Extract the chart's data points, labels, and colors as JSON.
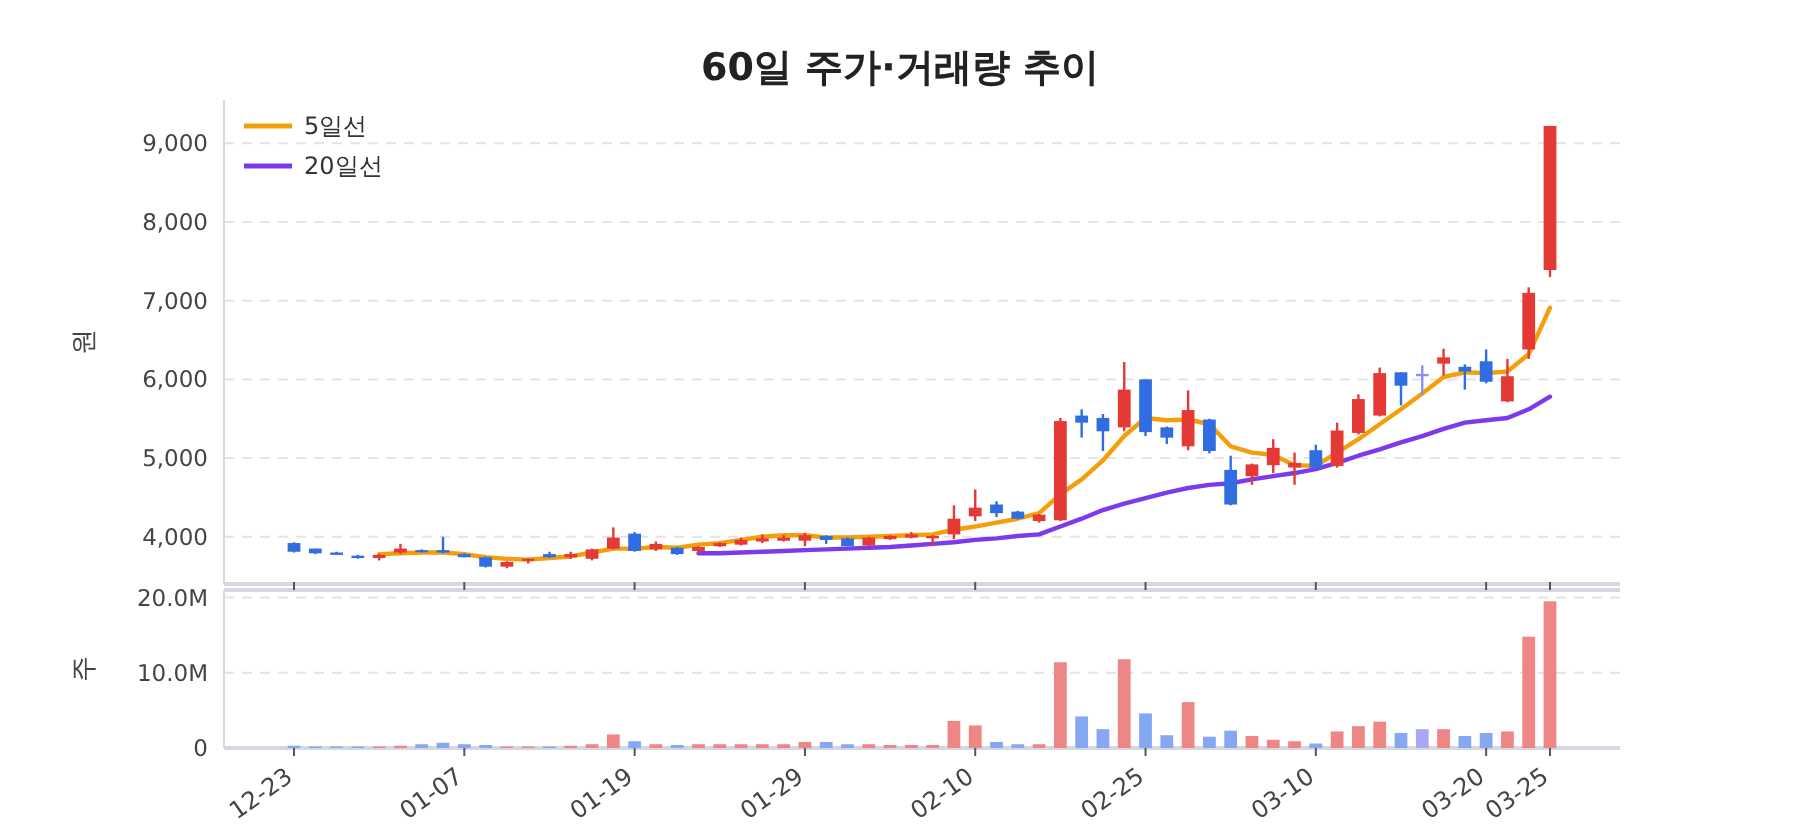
{
  "chart_data": [
    {
      "type": "candlestick",
      "title": "60일 주가·거래량 추이",
      "ylabel": "원",
      "categories": [
        null,
        null,
        null,
        null,
        null,
        null,
        null,
        null,
        null,
        null,
        null,
        null,
        null,
        null,
        null,
        null,
        null,
        null,
        null,
        null,
        null,
        null,
        null,
        null,
        null,
        null,
        null,
        null,
        null,
        null,
        null,
        null,
        null,
        null,
        null,
        null,
        null,
        null,
        null,
        null,
        null,
        null,
        null,
        null,
        null,
        null,
        null,
        null,
        null,
        null,
        null,
        null,
        null,
        null,
        null,
        null,
        null,
        null,
        null,
        null
      ],
      "ohlc": [
        [
          3920,
          3930,
          3800,
          3810
        ],
        [
          3850,
          3850,
          3780,
          3790
        ],
        [
          3800,
          3810,
          3770,
          3770
        ],
        [
          3760,
          3770,
          3720,
          3730
        ],
        [
          3730,
          3780,
          3700,
          3770
        ],
        [
          3800,
          3910,
          3780,
          3850
        ],
        [
          3830,
          3840,
          3800,
          3810
        ],
        [
          3830,
          4000,
          3790,
          3800
        ],
        [
          3780,
          3790,
          3740,
          3740
        ],
        [
          3740,
          3750,
          3610,
          3620
        ],
        [
          3620,
          3690,
          3600,
          3680
        ],
        [
          3700,
          3730,
          3660,
          3720
        ],
        [
          3780,
          3810,
          3730,
          3740
        ],
        [
          3740,
          3810,
          3720,
          3780
        ],
        [
          3720,
          3850,
          3700,
          3840
        ],
        [
          3850,
          4120,
          3840,
          3990
        ],
        [
          4040,
          4060,
          3810,
          3820
        ],
        [
          3840,
          3940,
          3820,
          3910
        ],
        [
          3860,
          3870,
          3770,
          3780
        ],
        [
          3820,
          3880,
          3790,
          3870
        ],
        [
          3880,
          3930,
          3870,
          3920
        ],
        [
          3900,
          3990,
          3890,
          3960
        ],
        [
          3940,
          4030,
          3920,
          3980
        ],
        [
          3950,
          4020,
          3940,
          3990
        ],
        [
          3950,
          4050,
          3880,
          4020
        ],
        [
          4010,
          4020,
          3910,
          3960
        ],
        [
          3980,
          3990,
          3880,
          3880
        ],
        [
          3890,
          4000,
          3880,
          3990
        ],
        [
          3970,
          4020,
          3960,
          4010
        ],
        [
          3990,
          4060,
          3980,
          4030
        ],
        [
          3980,
          4020,
          3880,
          4010
        ],
        [
          4030,
          4400,
          3970,
          4230
        ],
        [
          4260,
          4600,
          4200,
          4370
        ],
        [
          4410,
          4450,
          4250,
          4300
        ],
        [
          4320,
          4330,
          4220,
          4230
        ],
        [
          4200,
          4290,
          4180,
          4280
        ],
        [
          4210,
          5510,
          4200,
          5470
        ],
        [
          5540,
          5620,
          5260,
          5450
        ],
        [
          5510,
          5560,
          5090,
          5340
        ],
        [
          5390,
          6220,
          5340,
          5870
        ],
        [
          6000,
          6000,
          5280,
          5330
        ],
        [
          5390,
          5400,
          5180,
          5260
        ],
        [
          5150,
          5860,
          5100,
          5610
        ],
        [
          5490,
          5500,
          5060,
          5090
        ],
        [
          4850,
          5030,
          4400,
          4410
        ],
        [
          4770,
          4930,
          4660,
          4920
        ],
        [
          4910,
          5240,
          4810,
          5130
        ],
        [
          4880,
          5070,
          4660,
          4940
        ],
        [
          5100,
          5170,
          4870,
          4880
        ],
        [
          4900,
          5450,
          4880,
          5350
        ],
        [
          5320,
          5810,
          5300,
          5750
        ],
        [
          5540,
          6150,
          5530,
          6080
        ],
        [
          6090,
          6090,
          5670,
          5920
        ],
        [
          6070,
          6180,
          5800,
          6040
        ],
        [
          6200,
          6390,
          6050,
          6280
        ],
        [
          6160,
          6190,
          5870,
          6100
        ],
        [
          6230,
          6380,
          5950,
          5970
        ],
        [
          5720,
          6260,
          5710,
          6040
        ],
        [
          6380,
          7170,
          6260,
          7100
        ],
        [
          7390,
          9220,
          7300,
          9220
        ]
      ],
      "colors": [
        "#2f6de0",
        "#2f6de0",
        "#2f6de0",
        "#2f6de0",
        "#e53935",
        "#e53935",
        "#2f6de0",
        "#2f6de0",
        "#2f6de0",
        "#2f6de0",
        "#e53935",
        "#e53935",
        "#2f6de0",
        "#e53935",
        "#e53935",
        "#e53935",
        "#2f6de0",
        "#e53935",
        "#2f6de0",
        "#e53935",
        "#e53935",
        "#e53935",
        "#e53935",
        "#e53935",
        "#e53935",
        "#2f6de0",
        "#2f6de0",
        "#e53935",
        "#e53935",
        "#e53935",
        "#e53935",
        "#e53935",
        "#e53935",
        "#2f6de0",
        "#2f6de0",
        "#e53935",
        "#e53935",
        "#2f6de0",
        "#2f6de0",
        "#e53935",
        "#2f6de0",
        "#2f6de0",
        "#e53935",
        "#2f6de0",
        "#2f6de0",
        "#e53935",
        "#e53935",
        "#e53935",
        "#2f6de0",
        "#e53935",
        "#e53935",
        "#e53935",
        "#2f6de0",
        "#8f8cf2",
        "#e53935",
        "#2f6de0",
        "#2f6de0",
        "#e53935",
        "#e53935",
        "#e53935"
      ],
      "series": [
        {
          "name": "5일선",
          "type": "line",
          "color": "#f59e0b",
          "values": [
            null,
            null,
            null,
            null,
            3780,
            3790,
            3800,
            3800,
            3780,
            3740,
            3720,
            3710,
            3730,
            3750,
            3800,
            3850,
            3850,
            3870,
            3860,
            3900,
            3920,
            3960,
            4000,
            4020,
            4020,
            3990,
            3990,
            4000,
            4010,
            4020,
            4030,
            4090,
            4130,
            4180,
            4230,
            4300,
            4540,
            4730,
            4970,
            5280,
            5510,
            5480,
            5490,
            5430,
            5150,
            5070,
            5040,
            4910,
            4900,
            5070,
            5240,
            5430,
            5620,
            5820,
            6030,
            6090,
            6080,
            6100,
            6320,
            6910
          ]
        },
        {
          "name": "20일선",
          "type": "line",
          "color": "#7c3aed",
          "values": [
            null,
            null,
            null,
            null,
            null,
            null,
            null,
            null,
            null,
            null,
            null,
            null,
            null,
            null,
            null,
            null,
            null,
            null,
            null,
            3790,
            3790,
            3800,
            3810,
            3820,
            3830,
            3840,
            3850,
            3860,
            3870,
            3890,
            3910,
            3930,
            3960,
            3980,
            4010,
            4030,
            4130,
            4230,
            4340,
            4420,
            4490,
            4560,
            4620,
            4660,
            4680,
            4730,
            4770,
            4810,
            4860,
            4940,
            5030,
            5110,
            5200,
            5280,
            5370,
            5450,
            5480,
            5510,
            5620,
            5780
          ]
        }
      ],
      "ylim": [
        3400,
        9550
      ],
      "yticks": [
        {
          "value": 4000,
          "label": "4,000"
        },
        {
          "value": 5000,
          "label": "5,000"
        },
        {
          "value": 6000,
          "label": "6,000"
        },
        {
          "value": 7000,
          "label": "7,000"
        },
        {
          "value": 8000,
          "label": "8,000"
        },
        {
          "value": 9000,
          "label": "9,000"
        }
      ],
      "grid": "y",
      "legend": "top left",
      "tick_labels": "y"
    },
    {
      "type": "bar",
      "ylabel": "주",
      "categories": [
        "12-23",
        null,
        null,
        null,
        null,
        null,
        null,
        null,
        "01-07",
        null,
        null,
        null,
        null,
        null,
        null,
        null,
        "01-19",
        null,
        null,
        null,
        null,
        null,
        null,
        null,
        "01-29",
        null,
        null,
        null,
        null,
        null,
        null,
        null,
        "02-10",
        null,
        null,
        null,
        null,
        null,
        null,
        null,
        "02-25",
        null,
        null,
        null,
        null,
        null,
        null,
        null,
        "03-10",
        null,
        null,
        null,
        null,
        null,
        null,
        null,
        "03-20",
        null,
        null,
        "03-25"
      ],
      "values": [
        0.3,
        0.2,
        0.2,
        0.2,
        0.2,
        0.3,
        0.5,
        0.7,
        0.5,
        0.4,
        0.2,
        0.2,
        0.2,
        0.3,
        0.5,
        1.8,
        0.9,
        0.5,
        0.4,
        0.5,
        0.5,
        0.5,
        0.5,
        0.5,
        0.8,
        0.8,
        0.5,
        0.5,
        0.4,
        0.4,
        0.4,
        3.6,
        3.0,
        0.8,
        0.5,
        0.5,
        11.4,
        4.2,
        2.5,
        11.8,
        4.6,
        1.7,
        6.1,
        1.5,
        2.3,
        1.6,
        1.1,
        0.9,
        0.6,
        2.2,
        2.9,
        3.5,
        2.0,
        2.5,
        2.5,
        1.6,
        2.0,
        2.2,
        14.8,
        19.5
      ],
      "colors": [
        "#86a8f2",
        "#86a8f2",
        "#86a8f2",
        "#86a8f2",
        "#ee8686",
        "#ee8686",
        "#86a8f2",
        "#86a8f2",
        "#86a8f2",
        "#86a8f2",
        "#ee8686",
        "#ee8686",
        "#86a8f2",
        "#ee8686",
        "#ee8686",
        "#ee8686",
        "#86a8f2",
        "#ee8686",
        "#86a8f2",
        "#ee8686",
        "#ee8686",
        "#ee8686",
        "#ee8686",
        "#ee8686",
        "#ee8686",
        "#86a8f2",
        "#86a8f2",
        "#ee8686",
        "#ee8686",
        "#ee8686",
        "#ee8686",
        "#ee8686",
        "#ee8686",
        "#86a8f2",
        "#86a8f2",
        "#ee8686",
        "#ee8686",
        "#86a8f2",
        "#86a8f2",
        "#ee8686",
        "#86a8f2",
        "#86a8f2",
        "#ee8686",
        "#86a8f2",
        "#86a8f2",
        "#ee8686",
        "#ee8686",
        "#ee8686",
        "#86a8f2",
        "#ee8686",
        "#ee8686",
        "#ee8686",
        "#86a8f2",
        "#a9a6f5",
        "#ee8686",
        "#86a8f2",
        "#86a8f2",
        "#ee8686",
        "#ee8686",
        "#ee8686"
      ],
      "ylim": [
        0,
        21
      ],
      "yticks": [
        {
          "value": 0,
          "label": "0"
        },
        {
          "value": 10,
          "label": "10.0M"
        },
        {
          "value": 20,
          "label": "20.0M"
        }
      ],
      "grid": "y"
    }
  ]
}
